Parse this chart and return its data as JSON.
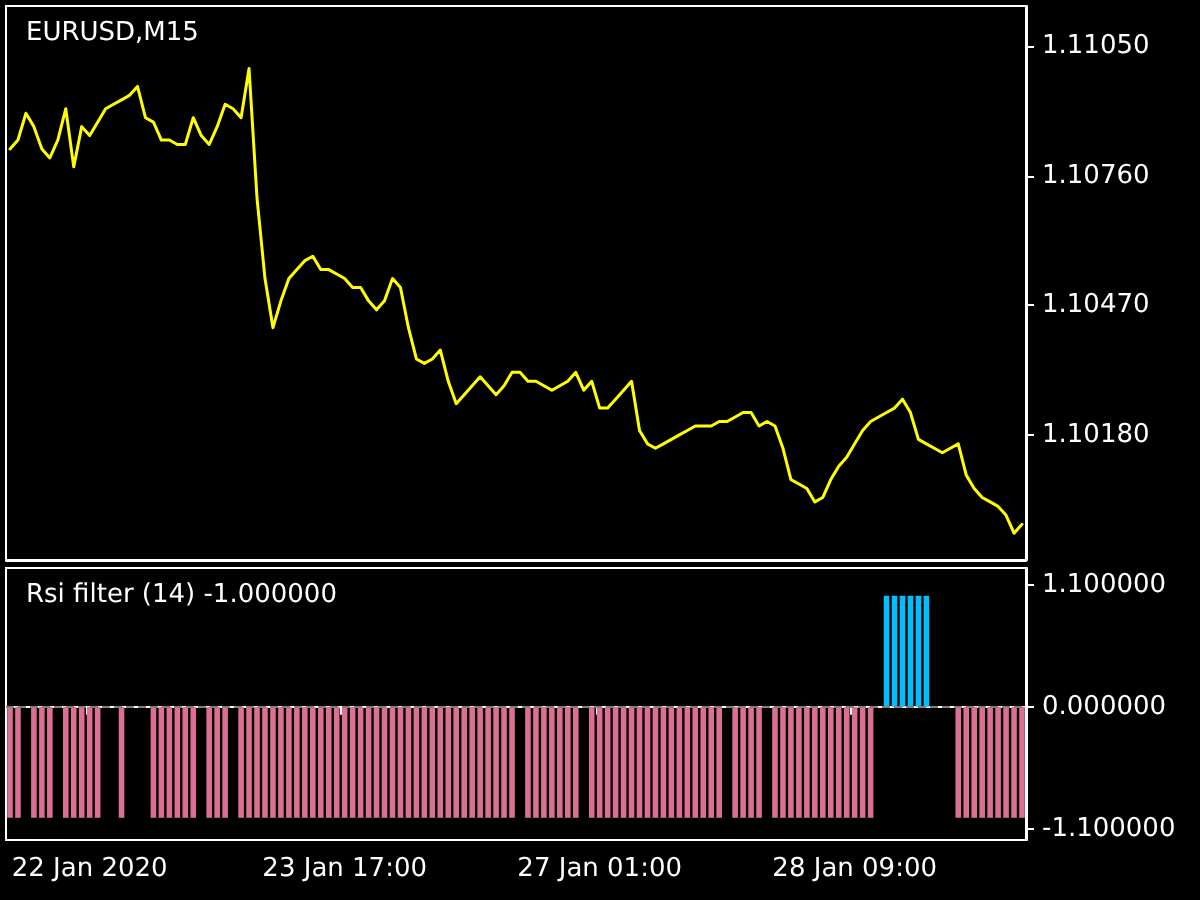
{
  "chart_data": [
    {
      "type": "line",
      "title": "EURUSD,M15",
      "color": "#ffff00",
      "tick_labels": "y",
      "categories": [
        null,
        null,
        null,
        null,
        null,
        null,
        null,
        null,
        null,
        null,
        null,
        null,
        null,
        null,
        null,
        null,
        null,
        null,
        null,
        null,
        null,
        null,
        null,
        null,
        null,
        null,
        null,
        null,
        null,
        null,
        null,
        null,
        null,
        null,
        null,
        null,
        null,
        null,
        null,
        null,
        null,
        null,
        null,
        null,
        null,
        null,
        null,
        null,
        null,
        null,
        null,
        null,
        null,
        null,
        null,
        null,
        null,
        null,
        null,
        null,
        null,
        null,
        null,
        null,
        null,
        null,
        null,
        null,
        null,
        null,
        null,
        null,
        null,
        null,
        null,
        null,
        null,
        null,
        null,
        null,
        null,
        null,
        null,
        null,
        null,
        null,
        null,
        null,
        null,
        null,
        null,
        null,
        null,
        null,
        null,
        null,
        null,
        null,
        null,
        null,
        null,
        null,
        null,
        null,
        null,
        null,
        null,
        null,
        null,
        null,
        null,
        null,
        null,
        null,
        null,
        null,
        null,
        null,
        null,
        null,
        null,
        null,
        null,
        null,
        null,
        null,
        null,
        null
      ],
      "values": [
        1.1082,
        1.1084,
        1.109,
        1.1087,
        1.1082,
        1.108,
        1.1084,
        1.1091,
        1.1078,
        1.1087,
        1.1085,
        1.1088,
        1.1091,
        1.1092,
        1.1093,
        1.1094,
        1.1096,
        1.1089,
        1.1088,
        1.1084,
        1.1084,
        1.1083,
        1.1083,
        1.1089,
        1.1085,
        1.1083,
        1.1087,
        1.1092,
        1.1091,
        1.1089,
        1.11,
        1.1071,
        1.1053,
        1.1042,
        1.1048,
        1.1053,
        1.1055,
        1.1057,
        1.1058,
        1.1055,
        1.1055,
        1.1054,
        1.1053,
        1.1051,
        1.1051,
        1.1048,
        1.1046,
        1.1048,
        1.1053,
        1.1051,
        1.1042,
        1.1035,
        1.1034,
        1.1035,
        1.1037,
        1.103,
        1.1025,
        1.1027,
        1.1029,
        1.1031,
        1.1029,
        1.1027,
        1.1029,
        1.1032,
        1.1032,
        1.103,
        1.103,
        1.1029,
        1.1028,
        1.1029,
        1.103,
        1.1032,
        1.1028,
        1.103,
        1.1024,
        1.1024,
        1.1026,
        1.1028,
        1.103,
        1.1019,
        1.1016,
        1.1015,
        1.1016,
        1.1017,
        1.1018,
        1.1019,
        1.102,
        1.102,
        1.102,
        1.1021,
        1.1021,
        1.1022,
        1.1023,
        1.1023,
        1.102,
        1.1021,
        1.102,
        1.1015,
        1.1008,
        1.1007,
        1.1006,
        1.1003,
        1.1004,
        1.1008,
        1.1011,
        1.1013,
        1.1016,
        1.1019,
        1.1021,
        1.1022,
        1.1023,
        1.1024,
        1.1026,
        1.1023,
        1.1017,
        1.1016,
        1.1015,
        1.1014,
        1.1015,
        1.1016,
        1.1009,
        1.1006,
        1.1004,
        1.1003,
        1.1002,
        1.1,
        1.0996,
        1.0998
      ],
      "ylim": [
        1.099,
        1.1114
      ],
      "yticks": [
        {
          "value": 1.1018,
          "label": "1.10180"
        },
        {
          "value": 1.1047,
          "label": "1.10470"
        },
        {
          "value": 1.1076,
          "label": "1.10760"
        },
        {
          "value": 1.1105,
          "label": "1.11050"
        }
      ]
    },
    {
      "type": "bar",
      "title": "Rsi filter (14) -1.000000",
      "stacked": true,
      "categories": [
        null,
        null,
        null,
        null,
        null,
        null,
        null,
        null,
        null,
        null,
        "22 Jan 2020",
        null,
        null,
        null,
        null,
        null,
        null,
        null,
        null,
        null,
        null,
        null,
        null,
        null,
        null,
        null,
        null,
        null,
        null,
        null,
        null,
        null,
        null,
        null,
        null,
        null,
        null,
        null,
        null,
        null,
        null,
        null,
        "23 Jan 17:00",
        null,
        null,
        null,
        null,
        null,
        null,
        null,
        null,
        null,
        null,
        null,
        null,
        null,
        null,
        null,
        null,
        null,
        null,
        null,
        null,
        null,
        null,
        null,
        null,
        null,
        null,
        null,
        null,
        null,
        null,
        null,
        "27 Jan 01:00",
        null,
        null,
        null,
        null,
        null,
        null,
        null,
        null,
        null,
        null,
        null,
        null,
        null,
        null,
        null,
        null,
        null,
        null,
        null,
        null,
        null,
        null,
        null,
        null,
        null,
        null,
        null,
        null,
        null,
        null,
        null,
        "28 Jan 09:00",
        null,
        null,
        null,
        null,
        null,
        null,
        null,
        null,
        null,
        null,
        null,
        null,
        null,
        null,
        null,
        null,
        null,
        null,
        null,
        null,
        null
      ],
      "series": [
        {
          "color": "#db7093",
          "values": [
            -1,
            -1,
            null,
            -1,
            -1,
            -1,
            null,
            -1,
            -1,
            -1,
            -1,
            -1,
            null,
            null,
            -1,
            null,
            null,
            null,
            -1,
            -1,
            -1,
            -1,
            -1,
            -1,
            null,
            -1,
            -1,
            -1,
            null,
            -1,
            -1,
            -1,
            -1,
            -1,
            -1,
            -1,
            -1,
            -1,
            -1,
            -1,
            -1,
            -1,
            -1,
            -1,
            -1,
            -1,
            -1,
            -1,
            -1,
            -1,
            -1,
            -1,
            -1,
            -1,
            -1,
            -1,
            -1,
            -1,
            -1,
            -1,
            -1,
            -1,
            -1,
            -1,
            null,
            -1,
            -1,
            -1,
            -1,
            -1,
            -1,
            -1,
            null,
            -1,
            -1,
            -1,
            -1,
            -1,
            -1,
            -1,
            -1,
            -1,
            -1,
            -1,
            -1,
            -1,
            -1,
            -1,
            -1,
            -1,
            null,
            -1,
            -1,
            -1,
            -1,
            null,
            -1,
            -1,
            -1,
            -1,
            -1,
            -1,
            -1,
            -1,
            -1,
            -1,
            -1,
            -1,
            -1,
            null,
            null,
            null,
            null,
            null,
            null,
            null,
            null,
            null,
            null,
            -1,
            -1,
            -1,
            -1,
            -1,
            -1,
            -1,
            -1,
            -1
          ]
        },
        {
          "color": "#00bfff",
          "values": [
            null,
            null,
            null,
            null,
            null,
            null,
            null,
            null,
            null,
            null,
            null,
            null,
            null,
            null,
            null,
            null,
            null,
            null,
            null,
            null,
            null,
            null,
            null,
            null,
            null,
            null,
            null,
            null,
            null,
            null,
            null,
            null,
            null,
            null,
            null,
            null,
            null,
            null,
            null,
            null,
            null,
            null,
            null,
            null,
            null,
            null,
            null,
            null,
            null,
            null,
            null,
            null,
            null,
            null,
            null,
            null,
            null,
            null,
            null,
            null,
            null,
            null,
            null,
            null,
            null,
            null,
            null,
            null,
            null,
            null,
            null,
            null,
            null,
            null,
            null,
            null,
            null,
            null,
            null,
            null,
            null,
            null,
            null,
            null,
            null,
            null,
            null,
            null,
            null,
            null,
            null,
            null,
            null,
            null,
            null,
            null,
            null,
            null,
            null,
            null,
            null,
            null,
            null,
            null,
            null,
            null,
            null,
            null,
            null,
            null,
            1,
            1,
            1,
            1,
            1,
            1,
            null,
            null,
            null,
            null,
            null,
            null,
            null,
            null,
            null,
            null,
            null,
            null
          ]
        }
      ],
      "ylim": [
        -1.2,
        1.25
      ],
      "yticks": [
        {
          "value": -1.1,
          "label": "-1.100000"
        },
        {
          "value": 0,
          "label": "0.000000"
        },
        {
          "value": 1.1,
          "label": "1.100000"
        }
      ],
      "ref_lines": [
        {
          "axis": "y",
          "value": 0,
          "color": "#808080",
          "line_style": "dashed"
        }
      ]
    }
  ]
}
